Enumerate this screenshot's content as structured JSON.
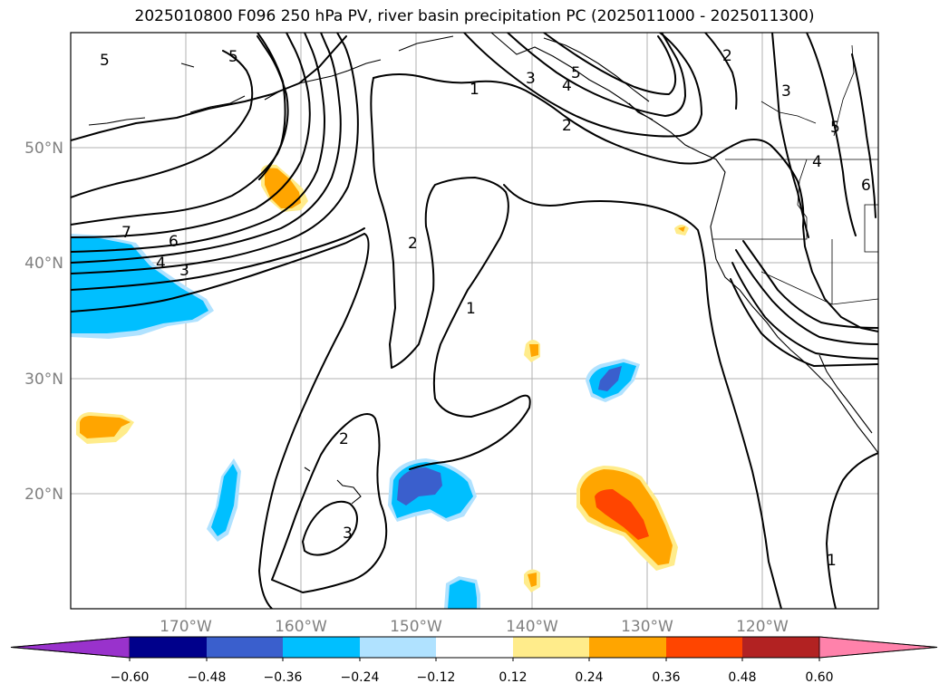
{
  "title": "2025010800 F096 250 hPa PV, river basin precipitation PC (2025011000 - 2025011300)",
  "map": {
    "lat_labels": [
      "50°N",
      "40°N",
      "30°N",
      "20°N"
    ],
    "lon_labels": [
      "170°W",
      "160°W",
      "150°W",
      "140°W",
      "130°W",
      "120°W"
    ],
    "contour_labels": [
      "5",
      "5",
      "1",
      "3",
      "4",
      "5",
      "2",
      "2",
      "3",
      "5",
      "4",
      "6",
      "7",
      "6",
      "4",
      "3",
      "2",
      "1",
      "2",
      "3",
      "1"
    ]
  },
  "colorbar": {
    "ticks": [
      "−0.60",
      "−0.48",
      "−0.36",
      "−0.24",
      "−0.12",
      "0.12",
      "0.24",
      "0.36",
      "0.48",
      "0.60"
    ],
    "colors": [
      "#9932cc",
      "#00008b",
      "#3a5fcd",
      "#00bfff",
      "#b0e2ff",
      "#ffffff",
      "#ffec8b",
      "#ffa500",
      "#ff4500",
      "#b22222",
      "#ff82ab"
    ]
  }
}
